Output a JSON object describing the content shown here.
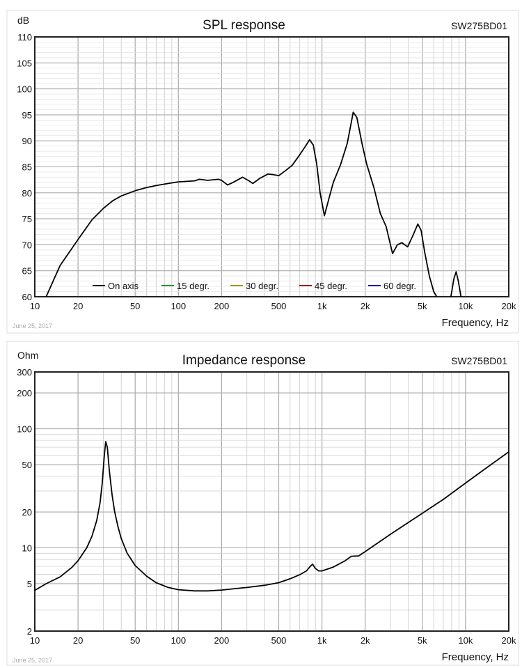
{
  "chart_data": [
    {
      "type": "line",
      "title": "SPL response",
      "model": "SW275BD01",
      "ylabel": "dB",
      "xlabel": "Frequency, Hz",
      "date": "June 25, 2017",
      "xscale": "log",
      "xlim": [
        10,
        20000
      ],
      "ylim": [
        60,
        110
      ],
      "xticks": [
        10,
        20,
        50,
        100,
        200,
        500,
        1000,
        2000,
        5000,
        10000,
        20000
      ],
      "xtick_labels": [
        "10",
        "20",
        "50",
        "100",
        "200",
        "500",
        "1k",
        "2k",
        "5k",
        "10k",
        "20k"
      ],
      "yticks": [
        60,
        65,
        70,
        75,
        80,
        85,
        90,
        95,
        100,
        105,
        110
      ],
      "ytick_labels": [
        "60",
        "65",
        "70",
        "75",
        "80",
        "85",
        "90",
        "95",
        "100",
        "105",
        "110"
      ],
      "grid": true,
      "legend_position": "bottom",
      "legend": [
        {
          "name": "On axis",
          "color": "#000000"
        },
        {
          "name": "15 degr.",
          "color": "#1a9a2a"
        },
        {
          "name": "30 degr.",
          "color": "#9a9a10"
        },
        {
          "name": "45 degr.",
          "color": "#a01818"
        },
        {
          "name": "60 degr.",
          "color": "#1a1aa0"
        }
      ],
      "series": [
        {
          "name": "On axis",
          "segments": [
            [
              [
                12,
                60
              ],
              [
                15,
                66
              ],
              [
                20,
                71
              ],
              [
                25,
                74.8
              ],
              [
                30,
                77
              ],
              [
                35,
                78.5
              ],
              [
                40,
                79.4
              ],
              [
                50,
                80.4
              ],
              [
                60,
                81
              ],
              [
                70,
                81.4
              ],
              [
                85,
                81.8
              ],
              [
                100,
                82.1
              ],
              [
                130,
                82.3
              ],
              [
                140,
                82.6
              ],
              [
                160,
                82.4
              ],
              [
                190,
                82.6
              ],
              [
                200,
                82.4
              ],
              [
                220,
                81.5
              ],
              [
                240,
                82
              ],
              [
                280,
                83
              ],
              [
                310,
                82.3
              ],
              [
                330,
                81.8
              ],
              [
                370,
                82.8
              ],
              [
                420,
                83.6
              ],
              [
                460,
                83.5
              ],
              [
                500,
                83.3
              ],
              [
                560,
                84.3
              ],
              [
                620,
                85.3
              ],
              [
                700,
                87.3
              ],
              [
                760,
                88.8
              ],
              [
                820,
                90.2
              ],
              [
                870,
                89.2
              ],
              [
                920,
                85.5
              ],
              [
                970,
                80
              ],
              [
                1040,
                75.6
              ],
              [
                1120,
                79
              ],
              [
                1200,
                82
              ],
              [
                1350,
                85.5
              ],
              [
                1500,
                89.5
              ],
              [
                1650,
                95.5
              ],
              [
                1750,
                94.5
              ],
              [
                1900,
                89.5
              ],
              [
                2050,
                85.5
              ],
              [
                2300,
                81
              ],
              [
                2550,
                76
              ],
              [
                2800,
                73.5
              ],
              [
                3100,
                68.3
              ],
              [
                3350,
                70
              ],
              [
                3600,
                70.4
              ],
              [
                3950,
                69.6
              ],
              [
                4300,
                71.8
              ],
              [
                4650,
                74
              ],
              [
                4900,
                72.8
              ],
              [
                5200,
                68.5
              ],
              [
                5600,
                64
              ],
              [
                6000,
                61
              ],
              [
                6300,
                60
              ]
            ],
            [
              [
                7900,
                60
              ],
              [
                8300,
                63.5
              ],
              [
                8600,
                64.8
              ],
              [
                8900,
                63
              ],
              [
                9300,
                60
              ]
            ]
          ]
        }
      ]
    },
    {
      "type": "line",
      "title": "Impedance response",
      "model": "SW275BD01",
      "ylabel": "Ohm",
      "xlabel": "Frequency, Hz",
      "date": "June 25, 2017",
      "xscale": "log",
      "yscale": "log",
      "xlim": [
        10,
        20000
      ],
      "ylim": [
        2,
        300
      ],
      "xticks": [
        10,
        20,
        50,
        100,
        200,
        500,
        1000,
        2000,
        5000,
        10000,
        20000
      ],
      "xtick_labels": [
        "10",
        "20",
        "50",
        "100",
        "200",
        "500",
        "1k",
        "2k",
        "5k",
        "10k",
        "20k"
      ],
      "yticks": [
        2,
        5,
        10,
        20,
        50,
        100,
        200,
        300
      ],
      "ytick_labels": [
        "2",
        "5",
        "10",
        "20",
        "50",
        "100",
        "200",
        "300"
      ],
      "grid": true,
      "series": [
        {
          "name": "Impedance",
          "segments": [
            [
              [
                10,
                4.4
              ],
              [
                12,
                5
              ],
              [
                15,
                5.7
              ],
              [
                18,
                6.8
              ],
              [
                20,
                7.8
              ],
              [
                23,
                10
              ],
              [
                25,
                12.5
              ],
              [
                27,
                17
              ],
              [
                28.5,
                24
              ],
              [
                29.5,
                35
              ],
              [
                30.5,
                60
              ],
              [
                31.2,
                78
              ],
              [
                32,
                70
              ],
              [
                33,
                45
              ],
              [
                34.5,
                28
              ],
              [
                36,
                20
              ],
              [
                38,
                15
              ],
              [
                40,
                12
              ],
              [
                44,
                9
              ],
              [
                50,
                7.1
              ],
              [
                60,
                5.8
              ],
              [
                70,
                5.1
              ],
              [
                85,
                4.65
              ],
              [
                100,
                4.45
              ],
              [
                130,
                4.35
              ],
              [
                160,
                4.35
              ],
              [
                200,
                4.42
              ],
              [
                250,
                4.55
              ],
              [
                300,
                4.65
              ],
              [
                400,
                4.85
              ],
              [
                500,
                5.1
              ],
              [
                600,
                5.5
              ],
              [
                700,
                5.95
              ],
              [
                780,
                6.4
              ],
              [
                830,
                7
              ],
              [
                860,
                7.3
              ],
              [
                900,
                6.7
              ],
              [
                950,
                6.4
              ],
              [
                1000,
                6.4
              ],
              [
                1200,
                6.9
              ],
              [
                1450,
                7.8
              ],
              [
                1600,
                8.5
              ],
              [
                1800,
                8.55
              ],
              [
                2000,
                9.3
              ],
              [
                3000,
                13
              ],
              [
                5000,
                19.5
              ],
              [
                7000,
                25.5
              ],
              [
                10000,
                35
              ],
              [
                14000,
                47
              ],
              [
                20000,
                64
              ]
            ]
          ]
        }
      ]
    }
  ]
}
